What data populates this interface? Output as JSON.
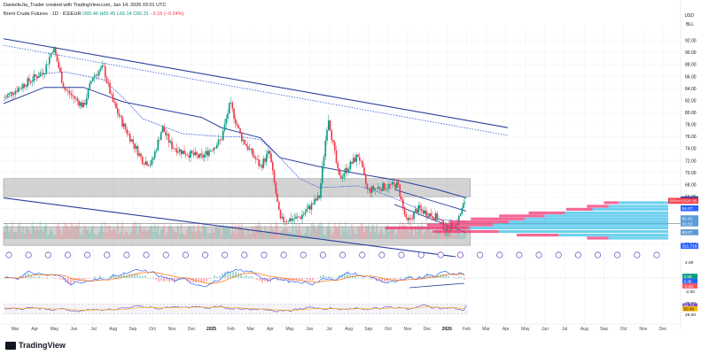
{
  "header": {
    "attribution": "DanielleJia_Trader created with TradingView.com, Jan 14, 2026 03:01 UTC",
    "instrument": "Brent Crude Futures · 1D · ICEEUR",
    "ohlc": "O65.46 H65.45 L65.14 C65.31",
    "change": "−0.16 (−0.24%)"
  },
  "currency": "USD",
  "unit": "BLL",
  "brand": "TradingView",
  "colors": {
    "up": "#089981",
    "down": "#f23645",
    "channel": "#2a3f9c",
    "ma": "#3b5bd9",
    "zone": "#9e9e9e",
    "profile_up": "#33bde8",
    "profile_down": "#f23675",
    "dot": "#7e57c2",
    "rsi": "#7e57c2"
  },
  "chart_data": {
    "type": "candlestick",
    "title": "Brent Crude Futures · 1D · ICEEUR",
    "ylabel": "USD",
    "ylim": [
      56,
      93
    ],
    "y_ticks": [
      "92.00",
      "90.00",
      "88.00",
      "86.00",
      "84.00",
      "82.00",
      "80.00",
      "78.00",
      "76.00",
      "74.00",
      "72.00",
      "70.00",
      "68.00",
      "66.00",
      "64.00",
      "62.00",
      "60.00",
      "58.00"
    ],
    "x_ticks": [
      "Mar",
      "Apr",
      "May",
      "Jun",
      "Jul",
      "Aug",
      "Sep",
      "Oct",
      "Nov",
      "Dec",
      "2025",
      "Feb",
      "Mar",
      "Apr",
      "May",
      "Jun",
      "Jul",
      "Aug",
      "Sep",
      "Oct",
      "Nov",
      "Dec",
      "2026",
      "Feb",
      "Mar",
      "Apr",
      "May",
      "Jun",
      "Jul",
      "Aug",
      "Sep",
      "Oct",
      "Nov",
      "Dec"
    ],
    "price_path": [
      {
        "x": "Mar",
        "y": 82.5
      },
      {
        "x": "Apr",
        "y": 87.0
      },
      {
        "x": "Apr",
        "y": 91.0
      },
      {
        "x": "May",
        "y": 84.0
      },
      {
        "x": "Jun",
        "y": 81.0
      },
      {
        "x": "Jun",
        "y": 86.0
      },
      {
        "x": "Jul",
        "y": 87.5
      },
      {
        "x": "Jul",
        "y": 82.0
      },
      {
        "x": "Aug",
        "y": 78.0
      },
      {
        "x": "Sep",
        "y": 72.0
      },
      {
        "x": "Sep",
        "y": 71.5
      },
      {
        "x": "Oct",
        "y": 77.5
      },
      {
        "x": "Oct",
        "y": 74.5
      },
      {
        "x": "Nov",
        "y": 73.5
      },
      {
        "x": "Dec",
        "y": 72.5
      },
      {
        "x": "2025",
        "y": 75.5
      },
      {
        "x": "2025",
        "y": 81.5
      },
      {
        "x": "Feb",
        "y": 76.0
      },
      {
        "x": "Mar",
        "y": 71.0
      },
      {
        "x": "Mar",
        "y": 73.5
      },
      {
        "x": "Apr",
        "y": 62.0
      },
      {
        "x": "May",
        "y": 62.5
      },
      {
        "x": "Jun",
        "y": 66.0
      },
      {
        "x": "Jun",
        "y": 79.5
      },
      {
        "x": "Jul",
        "y": 69.0
      },
      {
        "x": "Aug",
        "y": 73.0
      },
      {
        "x": "Aug",
        "y": 67.0
      },
      {
        "x": "Sep",
        "y": 67.5
      },
      {
        "x": "Oct",
        "y": 68.0
      },
      {
        "x": "Oct",
        "y": 61.5
      },
      {
        "x": "Nov",
        "y": 64.0
      },
      {
        "x": "Dec",
        "y": 62.5
      },
      {
        "x": "Dec",
        "y": 60.5
      },
      {
        "x": "2026",
        "y": 61.5
      },
      {
        "x": "2026",
        "y": 65.31
      }
    ],
    "moving_averages": [
      {
        "name": "MA slow",
        "points": [
          {
            "x": "Mar",
            "y": 81.5
          },
          {
            "x": "Apr",
            "y": 84.2
          },
          {
            "x": "Jun",
            "y": 84.2
          },
          {
            "x": "Aug",
            "y": 81.8
          },
          {
            "x": "Oct",
            "y": 80.5
          },
          {
            "x": "Dec",
            "y": 79.2
          },
          {
            "x": "2025",
            "y": 77.5
          },
          {
            "x": "Mar",
            "y": 75.8
          },
          {
            "x": "Apr",
            "y": 72.5
          },
          {
            "x": "Jun",
            "y": 71.0
          },
          {
            "x": "Aug",
            "y": 69.8
          },
          {
            "x": "Oct",
            "y": 68.7
          },
          {
            "x": "Dec",
            "y": 67.2
          },
          {
            "x": "2026",
            "y": 65.8
          }
        ]
      },
      {
        "name": "MA fast",
        "points": [
          {
            "x": "Mar",
            "y": 82.0
          },
          {
            "x": "Apr",
            "y": 86.5
          },
          {
            "x": "May",
            "y": 86.8
          },
          {
            "x": "Jul",
            "y": 85.5
          },
          {
            "x": "Aug",
            "y": 82.5
          },
          {
            "x": "Sep",
            "y": 79.0
          },
          {
            "x": "Nov",
            "y": 76.5
          },
          {
            "x": "2025",
            "y": 76.0
          },
          {
            "x": "Feb",
            "y": 76.0
          },
          {
            "x": "Mar",
            "y": 75.5
          },
          {
            "x": "Apr",
            "y": 72.5
          },
          {
            "x": "May",
            "y": 69.0
          },
          {
            "x": "Jun",
            "y": 67.5
          },
          {
            "x": "Aug",
            "y": 67.8
          },
          {
            "x": "Sep",
            "y": 66.8
          },
          {
            "x": "Oct",
            "y": 65.5
          },
          {
            "x": "Nov",
            "y": 64.0
          },
          {
            "x": "Dec",
            "y": 62.3
          },
          {
            "x": "2026",
            "y": 61.8
          }
        ]
      }
    ],
    "channel_lines": [
      {
        "name": "upper channel",
        "x1": "Mar",
        "y1": 92.3,
        "x2": "Apr",
        "y2": 77.5,
        "style": "solid"
      },
      {
        "name": "upper dotted",
        "x1": "Mar",
        "y1": 91.2,
        "x2": "Apr",
        "y2": 76.2,
        "style": "dotted"
      },
      {
        "name": "lower channel",
        "x1": "Mar",
        "y1": 65.8,
        "x2": "2026",
        "y2": 56.0,
        "style": "solid"
      }
    ],
    "zones": [
      {
        "name": "resistance zone",
        "y_from": 66.0,
        "y_to": 69.0
      },
      {
        "name": "support zone",
        "y_from": 57.9,
        "y_to": 61.0
      }
    ],
    "price_labels": [
      {
        "label": "65.56",
        "value": 65.56,
        "color": "#2a3f9c"
      },
      {
        "label": "BRNH2026 65.31",
        "value": 65.31,
        "color": "#f23645"
      },
      {
        "label": "64.07",
        "value": 64.07,
        "color": "#2962ff"
      },
      {
        "label": "62.41",
        "value": 62.41,
        "color": "#5b9bd5"
      },
      {
        "label": "61.53",
        "value": 61.53,
        "color": "#5b9bd5"
      },
      {
        "label": "60.07",
        "value": 60.07,
        "color": "#5b9bd5"
      },
      {
        "label": "311.71K",
        "value": 57.8,
        "color": "#2962ff"
      }
    ],
    "volume_profile": {
      "bins": [
        {
          "price": 65.0,
          "up": 0.25,
          "down": 0.12
        },
        {
          "price": 64.4,
          "up": 0.3,
          "down": 0.18
        },
        {
          "price": 63.9,
          "up": 0.38,
          "down": 0.22
        },
        {
          "price": 63.3,
          "up": 0.52,
          "down": 0.3
        },
        {
          "price": 62.8,
          "up": 0.62,
          "down": 0.38
        },
        {
          "price": 62.3,
          "up": 0.72,
          "down": 0.45
        },
        {
          "price": 61.8,
          "up": 0.8,
          "down": 0.5
        },
        {
          "price": 61.3,
          "up": 0.88,
          "down": 0.55
        },
        {
          "price": 60.8,
          "up": 1.0,
          "down": 0.7
        },
        {
          "price": 60.2,
          "up": 0.85,
          "down": 0.55
        },
        {
          "price": 59.6,
          "up": 0.55,
          "down": 0.35
        },
        {
          "price": 59.1,
          "up": 0.3,
          "down": 0.18
        }
      ]
    },
    "macd": {
      "labels": [
        "0.59",
        "0.36",
        "-0.04"
      ],
      "tick_top": "2.00",
      "tick_bottom": "-2.00"
    },
    "rsi": {
      "labels": [
        "64.12",
        "50.99"
      ],
      "ticks": [
        "75.00",
        "25.00"
      ],
      "overbought": 70,
      "oversold": 30,
      "last": 64.12,
      "signal": 50.99
    }
  }
}
